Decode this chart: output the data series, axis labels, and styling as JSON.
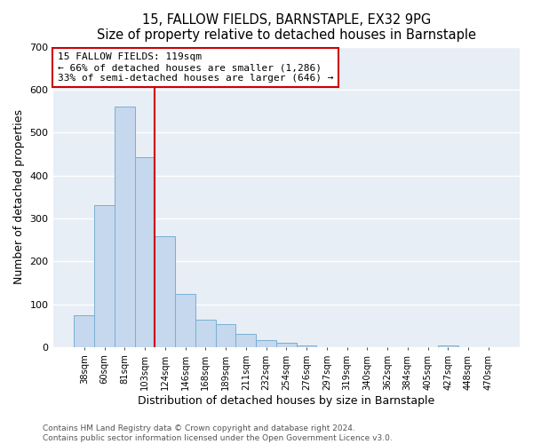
{
  "title": "15, FALLOW FIELDS, BARNSTAPLE, EX32 9PG",
  "subtitle": "Size of property relative to detached houses in Barnstaple",
  "xlabel": "Distribution of detached houses by size in Barnstaple",
  "ylabel": "Number of detached properties",
  "bar_labels": [
    "38sqm",
    "60sqm",
    "81sqm",
    "103sqm",
    "124sqm",
    "146sqm",
    "168sqm",
    "189sqm",
    "211sqm",
    "232sqm",
    "254sqm",
    "276sqm",
    "297sqm",
    "319sqm",
    "340sqm",
    "362sqm",
    "384sqm",
    "405sqm",
    "427sqm",
    "448sqm",
    "470sqm"
  ],
  "bar_values": [
    75,
    330,
    560,
    443,
    258,
    125,
    65,
    53,
    30,
    17,
    11,
    5,
    0,
    0,
    0,
    0,
    0,
    0,
    5,
    0,
    0
  ],
  "bar_color": "#c5d8ed",
  "bar_edge_color": "#7aafd4",
  "vline_color": "#cc0000",
  "ylim": [
    0,
    700
  ],
  "yticks": [
    0,
    100,
    200,
    300,
    400,
    500,
    600,
    700
  ],
  "annotation_title": "15 FALLOW FIELDS: 119sqm",
  "annotation_line1": "← 66% of detached houses are smaller (1,286)",
  "annotation_line2": "33% of semi-detached houses are larger (646) →",
  "annotation_box_color": "#cc0000",
  "footer_line1": "Contains HM Land Registry data © Crown copyright and database right 2024.",
  "footer_line2": "Contains public sector information licensed under the Open Government Licence v3.0.",
  "background_color": "#ffffff",
  "plot_bg_color": "#e8eef5",
  "grid_color": "#ffffff",
  "title_fontsize": 10.5,
  "subtitle_fontsize": 9.5
}
